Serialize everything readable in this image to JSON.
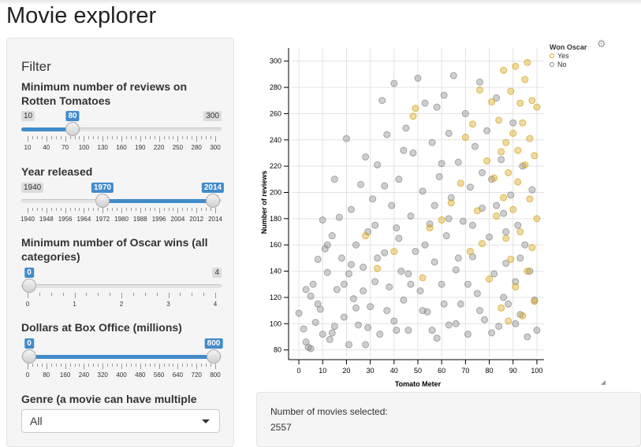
{
  "title": "Movie explorer",
  "filter": {
    "heading": "Filter",
    "reviews": {
      "label": "Minimum number of reviews on Rotten Tomatoes",
      "min": "10",
      "max": "300",
      "value": "80",
      "ticks": [
        "10",
        "40",
        "70",
        "100",
        "130",
        "160",
        "190",
        "220",
        "250",
        "280",
        "300"
      ]
    },
    "year": {
      "label": "Year released",
      "min": "1940",
      "from": "1970",
      "to": "2014",
      "ticks": [
        "1940",
        "1948",
        "1956",
        "1964",
        "1972",
        "1980",
        "1988",
        "1996",
        "2004",
        "2012",
        "2014"
      ]
    },
    "oscars": {
      "label": "Minimum number of Oscar wins (all categories)",
      "value": "0",
      "max": "4",
      "ticks": [
        "0",
        "1",
        "2",
        "3",
        "4"
      ]
    },
    "boxoffice": {
      "label": "Dollars at Box Office (millions)",
      "from": "0",
      "to": "800",
      "ticks": [
        "0",
        "80",
        "160",
        "240",
        "320",
        "400",
        "480",
        "560",
        "640",
        "720",
        "800"
      ]
    },
    "genre": {
      "label": "Genre (a movie can have multiple genres)",
      "selected": "All"
    }
  },
  "legend": {
    "title": "Won Oscar",
    "yes": "Yes",
    "no": "No"
  },
  "colors": {
    "yes": "#d6a21a",
    "no": "#888888",
    "accent": "#428bca"
  },
  "summary": {
    "label": "Number of movies selected:",
    "count": "2557"
  },
  "chart_data": {
    "type": "scatter",
    "xlabel": "Tomato Meter",
    "ylabel": "Number of reviews",
    "xlim": [
      -3,
      103
    ],
    "ylim": [
      75,
      310
    ],
    "xticks": [
      0,
      10,
      20,
      30,
      40,
      50,
      60,
      70,
      80,
      90,
      100
    ],
    "yticks": [
      80,
      100,
      120,
      140,
      160,
      180,
      200,
      220,
      240,
      260,
      280,
      300
    ],
    "grid": true,
    "legend_position": "top-right-outside",
    "series": [
      {
        "name": "No",
        "color": "#888888",
        "points": [
          [
            0,
            108
          ],
          [
            2,
            96
          ],
          [
            3,
            86
          ],
          [
            4,
            82
          ],
          [
            5,
            121
          ],
          [
            5,
            81
          ],
          [
            6,
            130
          ],
          [
            7,
            101
          ],
          [
            8,
            149
          ],
          [
            9,
            111
          ],
          [
            10,
            92
          ],
          [
            10,
            179
          ],
          [
            11,
            157
          ],
          [
            12,
            139
          ],
          [
            13,
            88
          ],
          [
            14,
            167
          ],
          [
            15,
            98
          ],
          [
            15,
            210
          ],
          [
            16,
            126
          ],
          [
            17,
            181
          ],
          [
            18,
            150
          ],
          [
            19,
            105
          ],
          [
            20,
            241
          ],
          [
            21,
            138
          ],
          [
            21,
            84
          ],
          [
            22,
            187
          ],
          [
            23,
            119
          ],
          [
            24,
            160
          ],
          [
            25,
            99
          ],
          [
            26,
            206
          ],
          [
            27,
            143
          ],
          [
            28,
            227
          ],
          [
            28,
            84
          ],
          [
            29,
            170
          ],
          [
            30,
            113
          ],
          [
            31,
            195
          ],
          [
            32,
            132
          ],
          [
            33,
            221
          ],
          [
            34,
            92
          ],
          [
            35,
            270
          ],
          [
            36,
            154
          ],
          [
            37,
            244
          ],
          [
            38,
            128
          ],
          [
            39,
            190
          ],
          [
            40,
            102
          ],
          [
            40,
            283
          ],
          [
            41,
            173
          ],
          [
            42,
            210
          ],
          [
            43,
            140
          ],
          [
            44,
            118
          ],
          [
            45,
            249
          ],
          [
            46,
            95
          ],
          [
            47,
            182
          ],
          [
            48,
            230
          ],
          [
            49,
            155
          ],
          [
            50,
            287
          ],
          [
            51,
            125
          ],
          [
            52,
            201
          ],
          [
            53,
            268
          ],
          [
            54,
            109
          ],
          [
            55,
            176
          ],
          [
            56,
            238
          ],
          [
            57,
            147
          ],
          [
            58,
            89
          ],
          [
            58,
            265
          ],
          [
            59,
            212
          ],
          [
            60,
            130
          ],
          [
            61,
            274
          ],
          [
            62,
            167
          ],
          [
            63,
            99
          ],
          [
            63,
            245
          ],
          [
            64,
            196
          ],
          [
            65,
            289
          ],
          [
            66,
            141
          ],
          [
            67,
            223
          ],
          [
            68,
            115
          ],
          [
            69,
            178
          ],
          [
            70,
            260
          ],
          [
            71,
            92
          ],
          [
            72,
            204
          ],
          [
            73,
            151
          ],
          [
            74,
            235
          ],
          [
            75,
            123
          ],
          [
            76,
            284
          ],
          [
            77,
            188
          ],
          [
            78,
            103
          ],
          [
            79,
            247
          ],
          [
            80,
            166
          ],
          [
            81,
            210
          ],
          [
            82,
            138
          ],
          [
            83,
            272
          ],
          [
            84,
            98
          ],
          [
            85,
            225
          ],
          [
            86,
            184
          ],
          [
            87,
            146
          ],
          [
            88,
            115
          ],
          [
            89,
            198
          ],
          [
            90,
            253
          ],
          [
            91,
            132
          ],
          [
            92,
            175
          ],
          [
            93,
            107
          ],
          [
            94,
            220
          ],
          [
            95,
            160
          ],
          [
            96,
            90
          ],
          [
            97,
            140
          ],
          [
            98,
            202
          ],
          [
            99,
            118
          ],
          [
            100,
            95
          ],
          [
            3,
            126
          ],
          [
            8,
            115
          ],
          [
            14,
            93
          ],
          [
            19,
            130
          ],
          [
            24,
            112
          ],
          [
            29,
            97
          ],
          [
            33,
            150
          ],
          [
            37,
            110
          ],
          [
            41,
            95
          ],
          [
            46,
            138
          ],
          [
            52,
            110
          ],
          [
            56,
            95
          ],
          [
            61,
            115
          ],
          [
            66,
            100
          ],
          [
            71,
            130
          ],
          [
            76,
            110
          ],
          [
            81,
            93
          ],
          [
            86,
            120
          ],
          [
            91,
            100
          ],
          [
            12,
            160
          ],
          [
            22,
            145
          ],
          [
            32,
            175
          ],
          [
            42,
            165
          ],
          [
            53,
            160
          ],
          [
            63,
            180
          ],
          [
            73,
            175
          ],
          [
            83,
            190
          ],
          [
            93,
            150
          ],
          [
            27,
            125
          ],
          [
            47,
            130
          ],
          [
            67,
            150
          ],
          [
            87,
            170
          ],
          [
            57,
            190
          ],
          [
            77,
            215
          ],
          [
            36,
            205
          ],
          [
            44,
            232
          ],
          [
            60,
            222
          ]
        ]
      },
      {
        "name": "Yes",
        "color": "#d6a21a",
        "points": [
          [
            28,
            167
          ],
          [
            33,
            142
          ],
          [
            40,
            155
          ],
          [
            48,
            258
          ],
          [
            49,
            264
          ],
          [
            52,
            135
          ],
          [
            55,
            173
          ],
          [
            60,
            179
          ],
          [
            64,
            192
          ],
          [
            68,
            207
          ],
          [
            70,
            242
          ],
          [
            72,
            155
          ],
          [
            73,
            252
          ],
          [
            75,
            186
          ],
          [
            76,
            278
          ],
          [
            77,
            161
          ],
          [
            79,
            224
          ],
          [
            80,
            134
          ],
          [
            81,
            269
          ],
          [
            82,
            211
          ],
          [
            83,
            182
          ],
          [
            84,
            255
          ],
          [
            85,
            112
          ],
          [
            85,
            231
          ],
          [
            86,
            196
          ],
          [
            86,
            293
          ],
          [
            87,
            165
          ],
          [
            87,
            238
          ],
          [
            88,
            102
          ],
          [
            88,
            215
          ],
          [
            89,
            277
          ],
          [
            89,
            149
          ],
          [
            90,
            245
          ],
          [
            90,
            187
          ],
          [
            91,
            296
          ],
          [
            91,
            128
          ],
          [
            92,
            232
          ],
          [
            92,
            208
          ],
          [
            93,
            268
          ],
          [
            93,
            170
          ],
          [
            94,
            253
          ],
          [
            94,
            106
          ],
          [
            95,
            286
          ],
          [
            95,
            221
          ],
          [
            96,
            140
          ],
          [
            96,
            299
          ],
          [
            97,
            241
          ],
          [
            97,
            195
          ],
          [
            98,
            270
          ],
          [
            98,
            158
          ],
          [
            99,
            228
          ],
          [
            99,
            117
          ],
          [
            100,
            265
          ],
          [
            100,
            180
          ]
        ]
      }
    ]
  }
}
